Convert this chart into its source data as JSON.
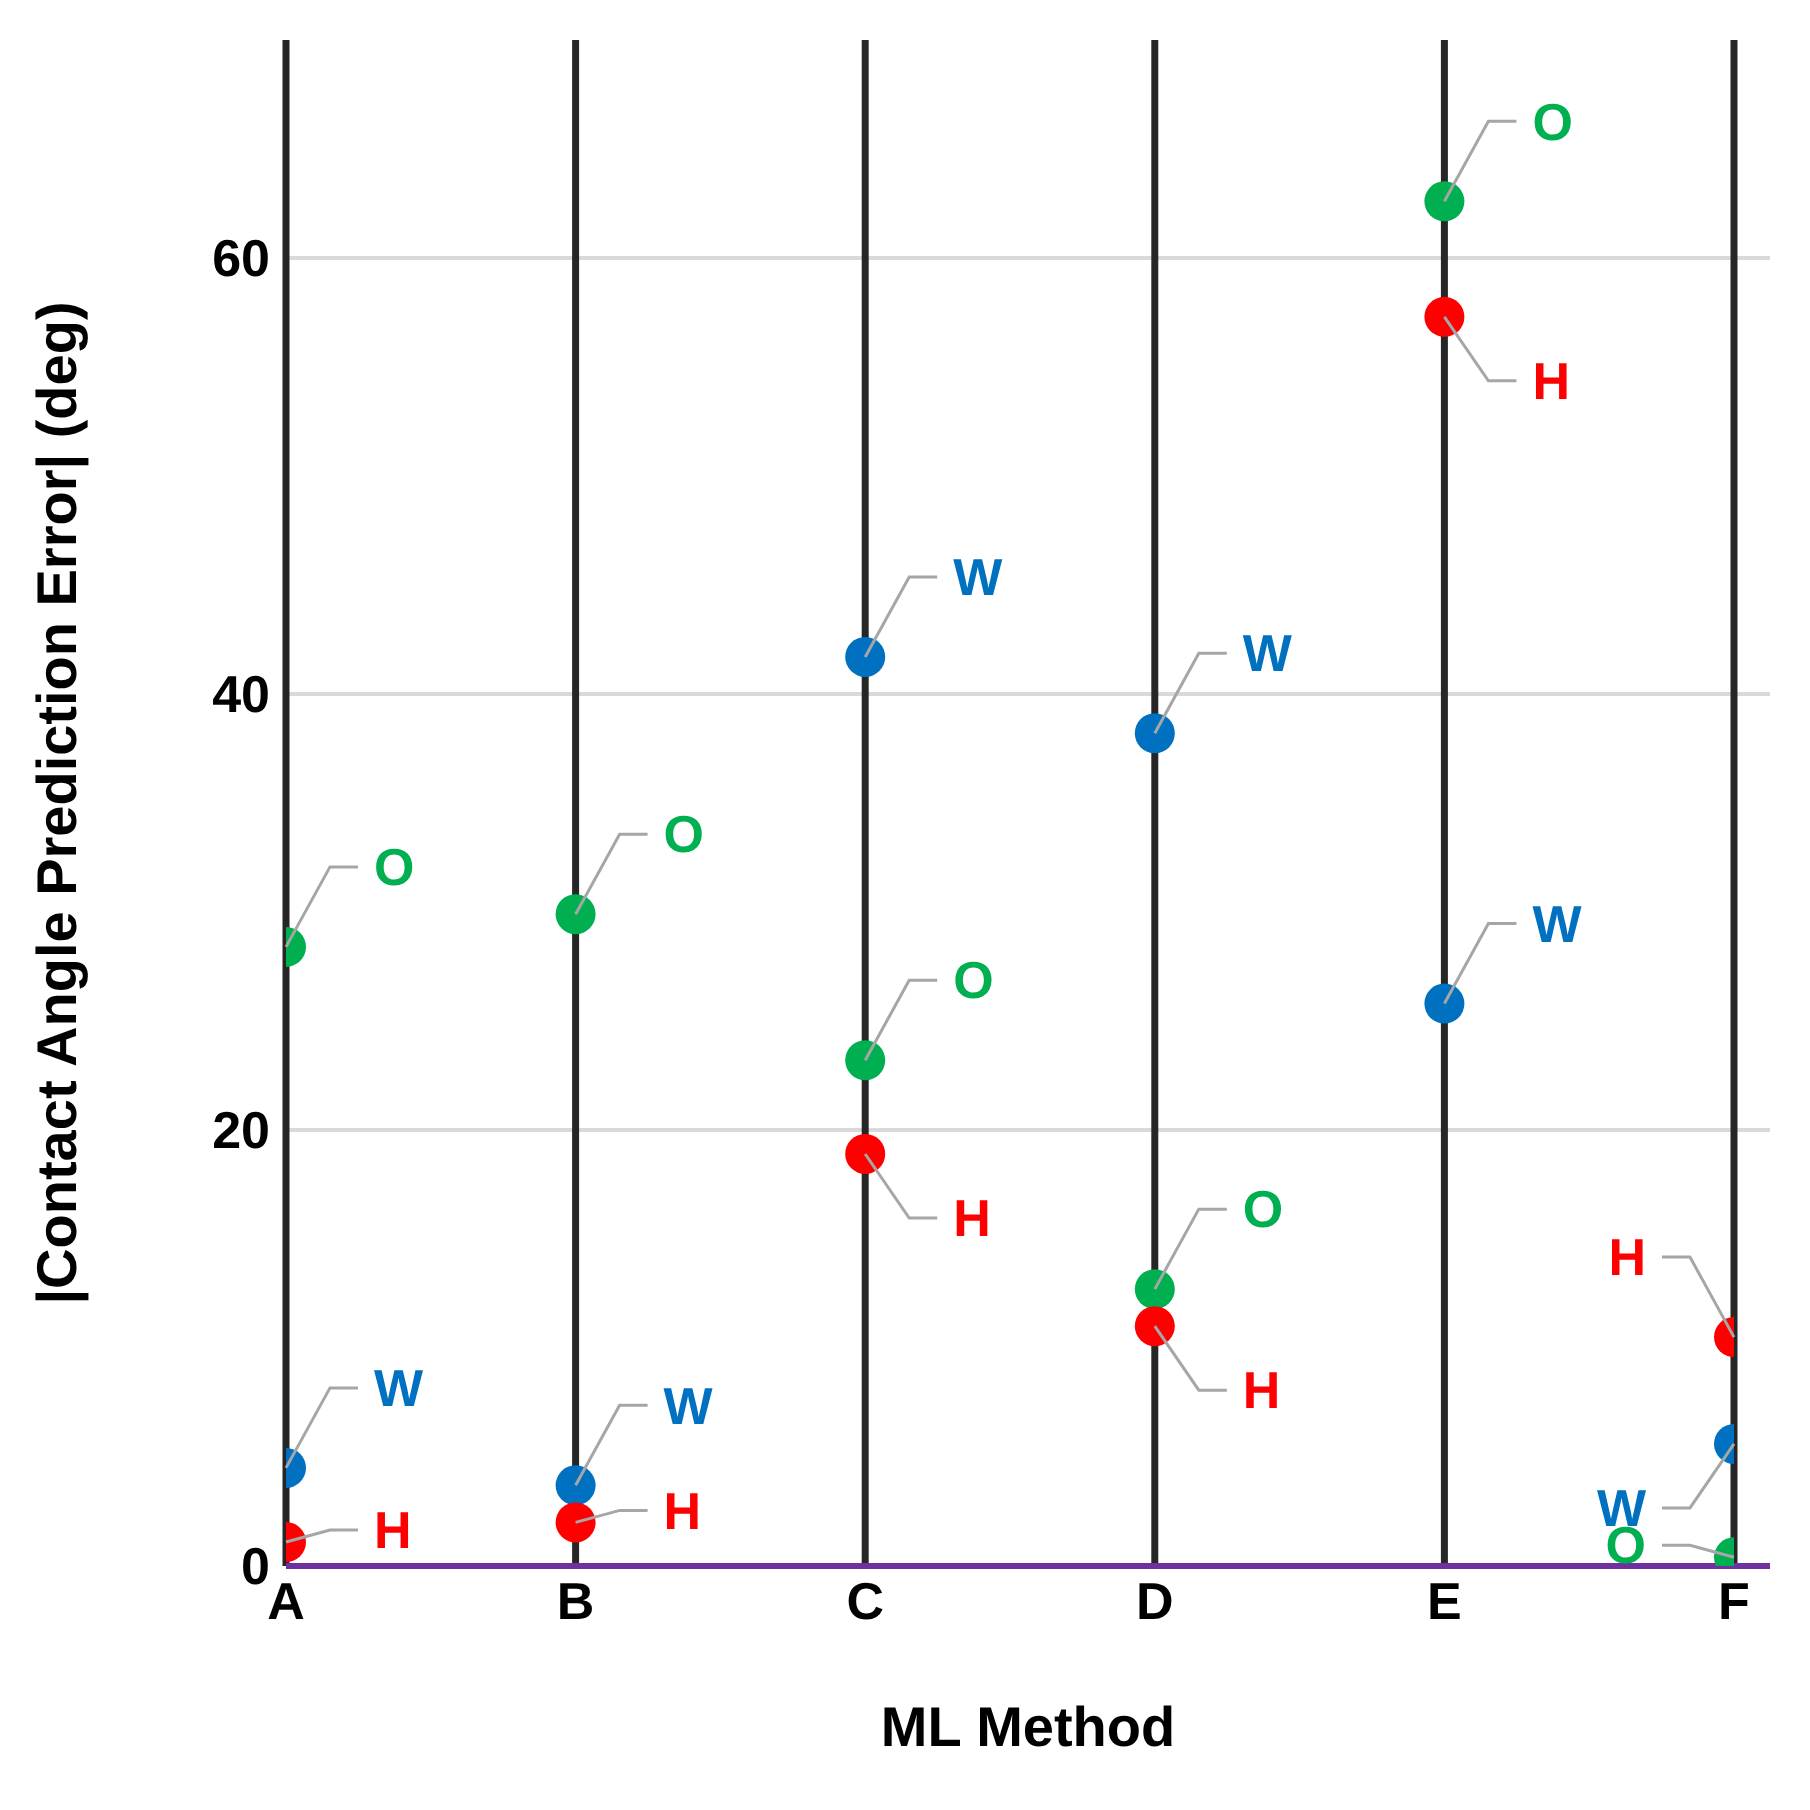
{
  "chart_data": {
    "type": "scatter",
    "xlabel": "ML Method",
    "ylabel": "|Contact Angle Prediction Error| (deg)",
    "categories": [
      "A",
      "B",
      "C",
      "D",
      "E",
      "F"
    ],
    "series": [
      {
        "name": "W",
        "color": "#0070c0",
        "values": [
          4.5,
          3.7,
          41.7,
          38.2,
          25.8,
          5.6
        ]
      },
      {
        "name": "O",
        "color": "#00b050",
        "values": [
          28.4,
          29.9,
          23.2,
          12.7,
          62.6,
          0.4
        ]
      },
      {
        "name": "H",
        "color": "#ff0000",
        "values": [
          1.1,
          2.0,
          18.9,
          11.0,
          57.3,
          10.5
        ]
      }
    ],
    "ylim": [
      0,
      70
    ],
    "yticks": [
      0,
      20,
      40,
      60
    ],
    "grid": true,
    "legend": false,
    "marker": "circle"
  }
}
